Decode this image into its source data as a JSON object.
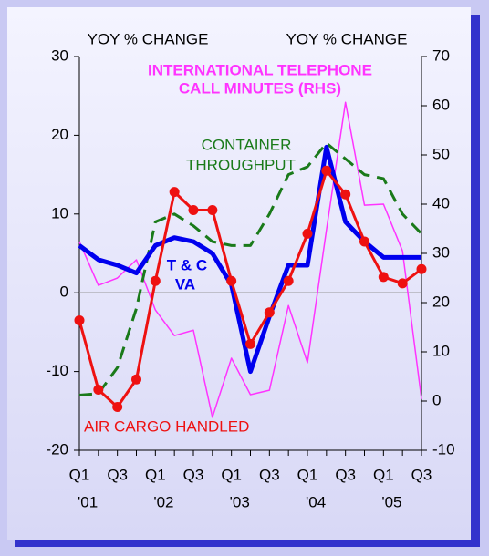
{
  "chart_data": {
    "type": "line",
    "left_axis_label": "YOY % CHANGE",
    "right_axis_label": "YOY % CHANGE",
    "categories": [
      "Q1",
      null,
      "Q3",
      null,
      "Q1",
      null,
      "Q3",
      null,
      "Q1",
      null,
      "Q3",
      null,
      "Q1",
      null,
      "Q3",
      null,
      "Q1",
      null,
      "Q3"
    ],
    "years": [
      "'01",
      null,
      null,
      null,
      "'02",
      null,
      null,
      null,
      "'03",
      null,
      null,
      null,
      "'04",
      null,
      null,
      null,
      "'05",
      null,
      null
    ],
    "ylim": [
      -20,
      30
    ],
    "yticks": [
      -20,
      -10,
      0,
      10,
      20,
      30
    ],
    "y2lim": [
      -10,
      70
    ],
    "y2ticks": [
      -10,
      0,
      10,
      20,
      30,
      40,
      50,
      60,
      70
    ],
    "zero_line": true,
    "series": [
      {
        "name": "INTERNATIONAL TELEPHONE CALL MINUTES (RHS)",
        "color": "#ff33ff",
        "axis": "y2",
        "width": 1.5,
        "values": [
          32.4,
          23.5,
          25,
          28.7,
          18.5,
          13.3,
          14.4,
          -3.3,
          8.7,
          1.3,
          2.2,
          19.4,
          7.8,
          34.8,
          60.7,
          39.8,
          40,
          30.5,
          0.4
        ]
      },
      {
        "name": "CONTAINER THROUGHPUT",
        "color": "#1a7a1a",
        "dashed": true,
        "width": 3,
        "values": [
          -13,
          -12.8,
          -9.5,
          -2,
          9,
          10,
          8.5,
          6.5,
          6,
          6,
          10,
          15,
          16,
          19,
          17,
          15,
          14.5,
          10,
          7.5
        ]
      },
      {
        "name": "T & C VA",
        "color": "#0000ee",
        "width": 5,
        "values": [
          6,
          4.2,
          3.5,
          2.5,
          6,
          7,
          6.5,
          5,
          1,
          -10,
          -3,
          3.5,
          3.5,
          18.5,
          9,
          6.5,
          4.5,
          4.5,
          4.5
        ]
      },
      {
        "name": "AIR CARGO HANDLED",
        "color": "#ee1111",
        "markers": true,
        "width": 3,
        "values": [
          -3.5,
          -12.3,
          -14.5,
          -11,
          1.5,
          12.8,
          10.5,
          10.5,
          1.5,
          -6.5,
          -2.5,
          1.5,
          7.5,
          15.5,
          12.5,
          6.5,
          2,
          1.2,
          3
        ]
      }
    ],
    "annotations": [
      "INTERNATIONAL TELEPHONE",
      "CALL MINUTES (RHS)",
      "CONTAINER",
      "THROUGHPUT",
      "T & C",
      "VA",
      "AIR CARGO HANDLED"
    ]
  }
}
